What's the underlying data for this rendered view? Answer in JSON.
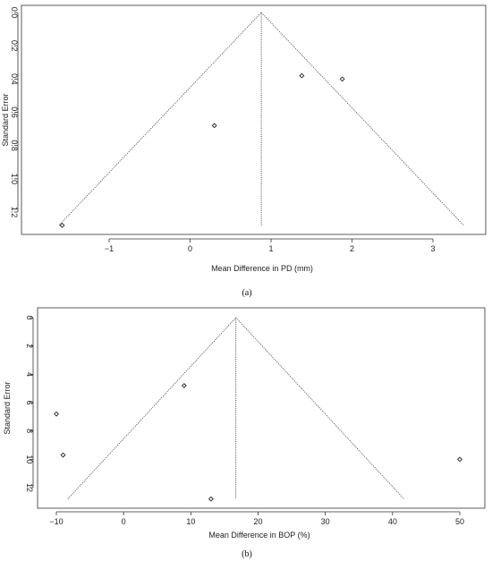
{
  "chart_data": [
    {
      "type": "scatter",
      "caption": "(a)",
      "xlabel": "Mean Difference in PD (mm)",
      "ylabel": "Standard Error",
      "xticks": [
        -1,
        0,
        1,
        2,
        3
      ],
      "yticks": [
        0.0,
        0.2,
        0.4,
        0.6,
        0.8,
        1.0,
        1.2
      ],
      "xlim": [
        -1.6,
        3.4
      ],
      "ylim": [
        0,
        1.3
      ],
      "y_reversed": true,
      "summary_estimate": 0.88,
      "funnel": {
        "apex": [
          0.88,
          0.0
        ],
        "base_left": [
          -1.62,
          1.28
        ],
        "base_right": [
          3.38,
          1.28
        ]
      },
      "x": [
        -1.58,
        0.3,
        1.38,
        1.88
      ],
      "y": [
        1.28,
        0.68,
        0.38,
        0.4
      ]
    },
    {
      "type": "scatter",
      "caption": "(b)",
      "xlabel": "Mean Difference in BOP (%)",
      "ylabel": "Standard Error",
      "xticks": [
        -10,
        0,
        10,
        20,
        30,
        40,
        50
      ],
      "yticks": [
        0,
        2,
        4,
        6,
        8,
        10,
        12
      ],
      "xlim": [
        -10,
        50
      ],
      "ylim": [
        0,
        12.9
      ],
      "y_reversed": true,
      "summary_estimate": 16.7,
      "funnel": {
        "apex": [
          16.7,
          0.0
        ],
        "base_left": [
          -8.3,
          12.8
        ],
        "base_right": [
          41.7,
          12.8
        ]
      },
      "x": [
        -10,
        -9,
        9,
        13,
        50
      ],
      "y": [
        6.8,
        9.7,
        4.8,
        12.8,
        10.0
      ]
    }
  ]
}
